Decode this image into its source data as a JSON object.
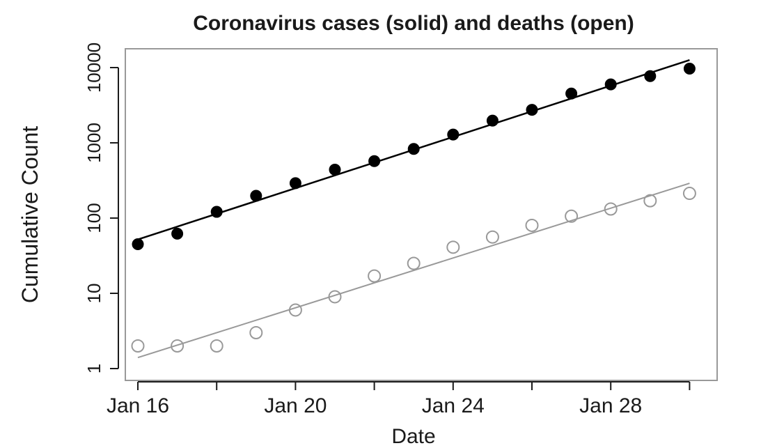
{
  "chart_data": {
    "type": "scatter",
    "title": "Coronavirus cases (solid) and deaths (open)",
    "xlabel": "Date",
    "ylabel": "Cumulative Count",
    "y_scale": "log",
    "ylim": [
      1,
      13000
    ],
    "xlim": [
      "2020-01-15",
      "2020-01-31"
    ],
    "x_ticks": [
      {
        "date": "2020-01-16",
        "label": "Jan 16"
      },
      {
        "date": "2020-01-20",
        "label": "Jan 20"
      },
      {
        "date": "2020-01-24",
        "label": "Jan 24"
      },
      {
        "date": "2020-01-28",
        "label": "Jan 28"
      }
    ],
    "minor_x_ticks": [
      "2020-01-18",
      "2020-01-22",
      "2020-01-26",
      "2020-01-30"
    ],
    "y_ticks": [
      {
        "value": 1,
        "label": "1"
      },
      {
        "value": 10,
        "label": "10"
      },
      {
        "value": 100,
        "label": "100"
      },
      {
        "value": 1000,
        "label": "1000"
      },
      {
        "value": 10000,
        "label": "10000"
      }
    ],
    "grid": false,
    "x": [
      "2020-01-16",
      "2020-01-17",
      "2020-01-18",
      "2020-01-19",
      "2020-01-20",
      "2020-01-21",
      "2020-01-22",
      "2020-01-23",
      "2020-01-24",
      "2020-01-25",
      "2020-01-26",
      "2020-01-27",
      "2020-01-28",
      "2020-01-29",
      "2020-01-30"
    ],
    "series": [
      {
        "style": "solid",
        "color": "#000000",
        "values": [
          45,
          62,
          121,
          198,
          291,
          440,
          571,
          830,
          1287,
          1975,
          2744,
          4515,
          5974,
          7711,
          9692
        ],
        "fit_line": {
          "from": [
            "2020-01-16",
            52
          ],
          "to": [
            "2020-01-30",
            12600
          ]
        }
      },
      {
        "style": "open",
        "color": "#999999",
        "values": [
          2,
          2,
          2,
          3,
          6,
          9,
          17,
          25,
          41,
          56,
          80,
          106,
          132,
          170,
          213
        ],
        "fit_line": {
          "from": [
            "2020-01-16",
            1.4
          ],
          "to": [
            "2020-01-30",
            290
          ]
        }
      }
    ]
  }
}
